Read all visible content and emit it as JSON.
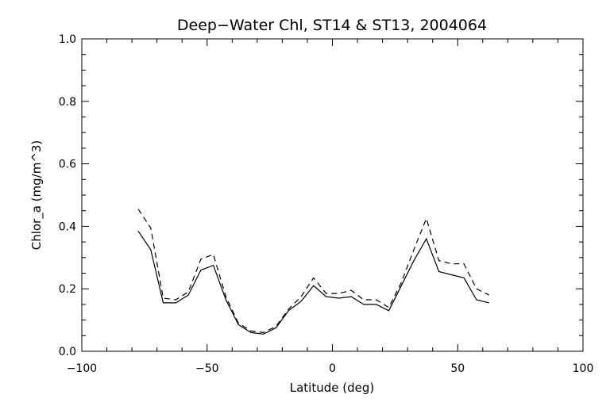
{
  "chart_data": {
    "type": "line",
    "title": "Deep−Water Chl, ST14 & ST13, 2004064",
    "xlabel": "Latitude (deg)",
    "ylabel": "Chlor_a (mg/m^3)",
    "xlim": [
      -100,
      100
    ],
    "ylim": [
      0.0,
      1.0
    ],
    "xticks": [
      -100,
      -50,
      0,
      50,
      100
    ],
    "xtick_labels": [
      "−100",
      "−50",
      "0",
      "50",
      "100"
    ],
    "yticks": [
      0.0,
      0.2,
      0.4,
      0.6,
      0.8,
      1.0
    ],
    "ytick_labels": [
      "0.0",
      "0.2",
      "0.4",
      "0.6",
      "0.8",
      "1.0"
    ],
    "grid": false,
    "series": [
      {
        "style": "solid",
        "x": [
          -77.5,
          -72.5,
          -67.5,
          -62.5,
          -57.5,
          -52.5,
          -47.5,
          -42.5,
          -37.5,
          -32.5,
          -27.5,
          -22.5,
          -17.5,
          -12.5,
          -7.5,
          -2.5,
          2.5,
          7.5,
          12.5,
          17.5,
          22.5,
          27.5,
          32.5,
          37.5,
          42.5,
          47.5,
          52.5,
          57.5,
          62.5
        ],
        "y": [
          0.385,
          0.325,
          0.155,
          0.155,
          0.18,
          0.26,
          0.275,
          0.165,
          0.085,
          0.06,
          0.055,
          0.075,
          0.13,
          0.16,
          0.21,
          0.175,
          0.17,
          0.175,
          0.15,
          0.15,
          0.13,
          0.21,
          0.29,
          0.36,
          0.255,
          0.245,
          0.235,
          0.165,
          0.155
        ]
      },
      {
        "style": "dashed",
        "x": [
          -77.5,
          -72.5,
          -67.5,
          -62.5,
          -57.5,
          -52.5,
          -47.5,
          -42.5,
          -37.5,
          -32.5,
          -27.5,
          -22.5,
          -17.5,
          -12.5,
          -7.5,
          -2.5,
          2.5,
          7.5,
          12.5,
          17.5,
          22.5,
          27.5,
          32.5,
          37.5,
          42.5,
          47.5,
          52.5,
          57.5,
          62.5
        ],
        "y": [
          0.455,
          0.395,
          0.17,
          0.165,
          0.19,
          0.295,
          0.31,
          0.175,
          0.09,
          0.065,
          0.06,
          0.08,
          0.135,
          0.175,
          0.235,
          0.185,
          0.185,
          0.195,
          0.165,
          0.165,
          0.14,
          0.22,
          0.325,
          0.425,
          0.29,
          0.28,
          0.28,
          0.2,
          0.18
        ]
      }
    ]
  }
}
